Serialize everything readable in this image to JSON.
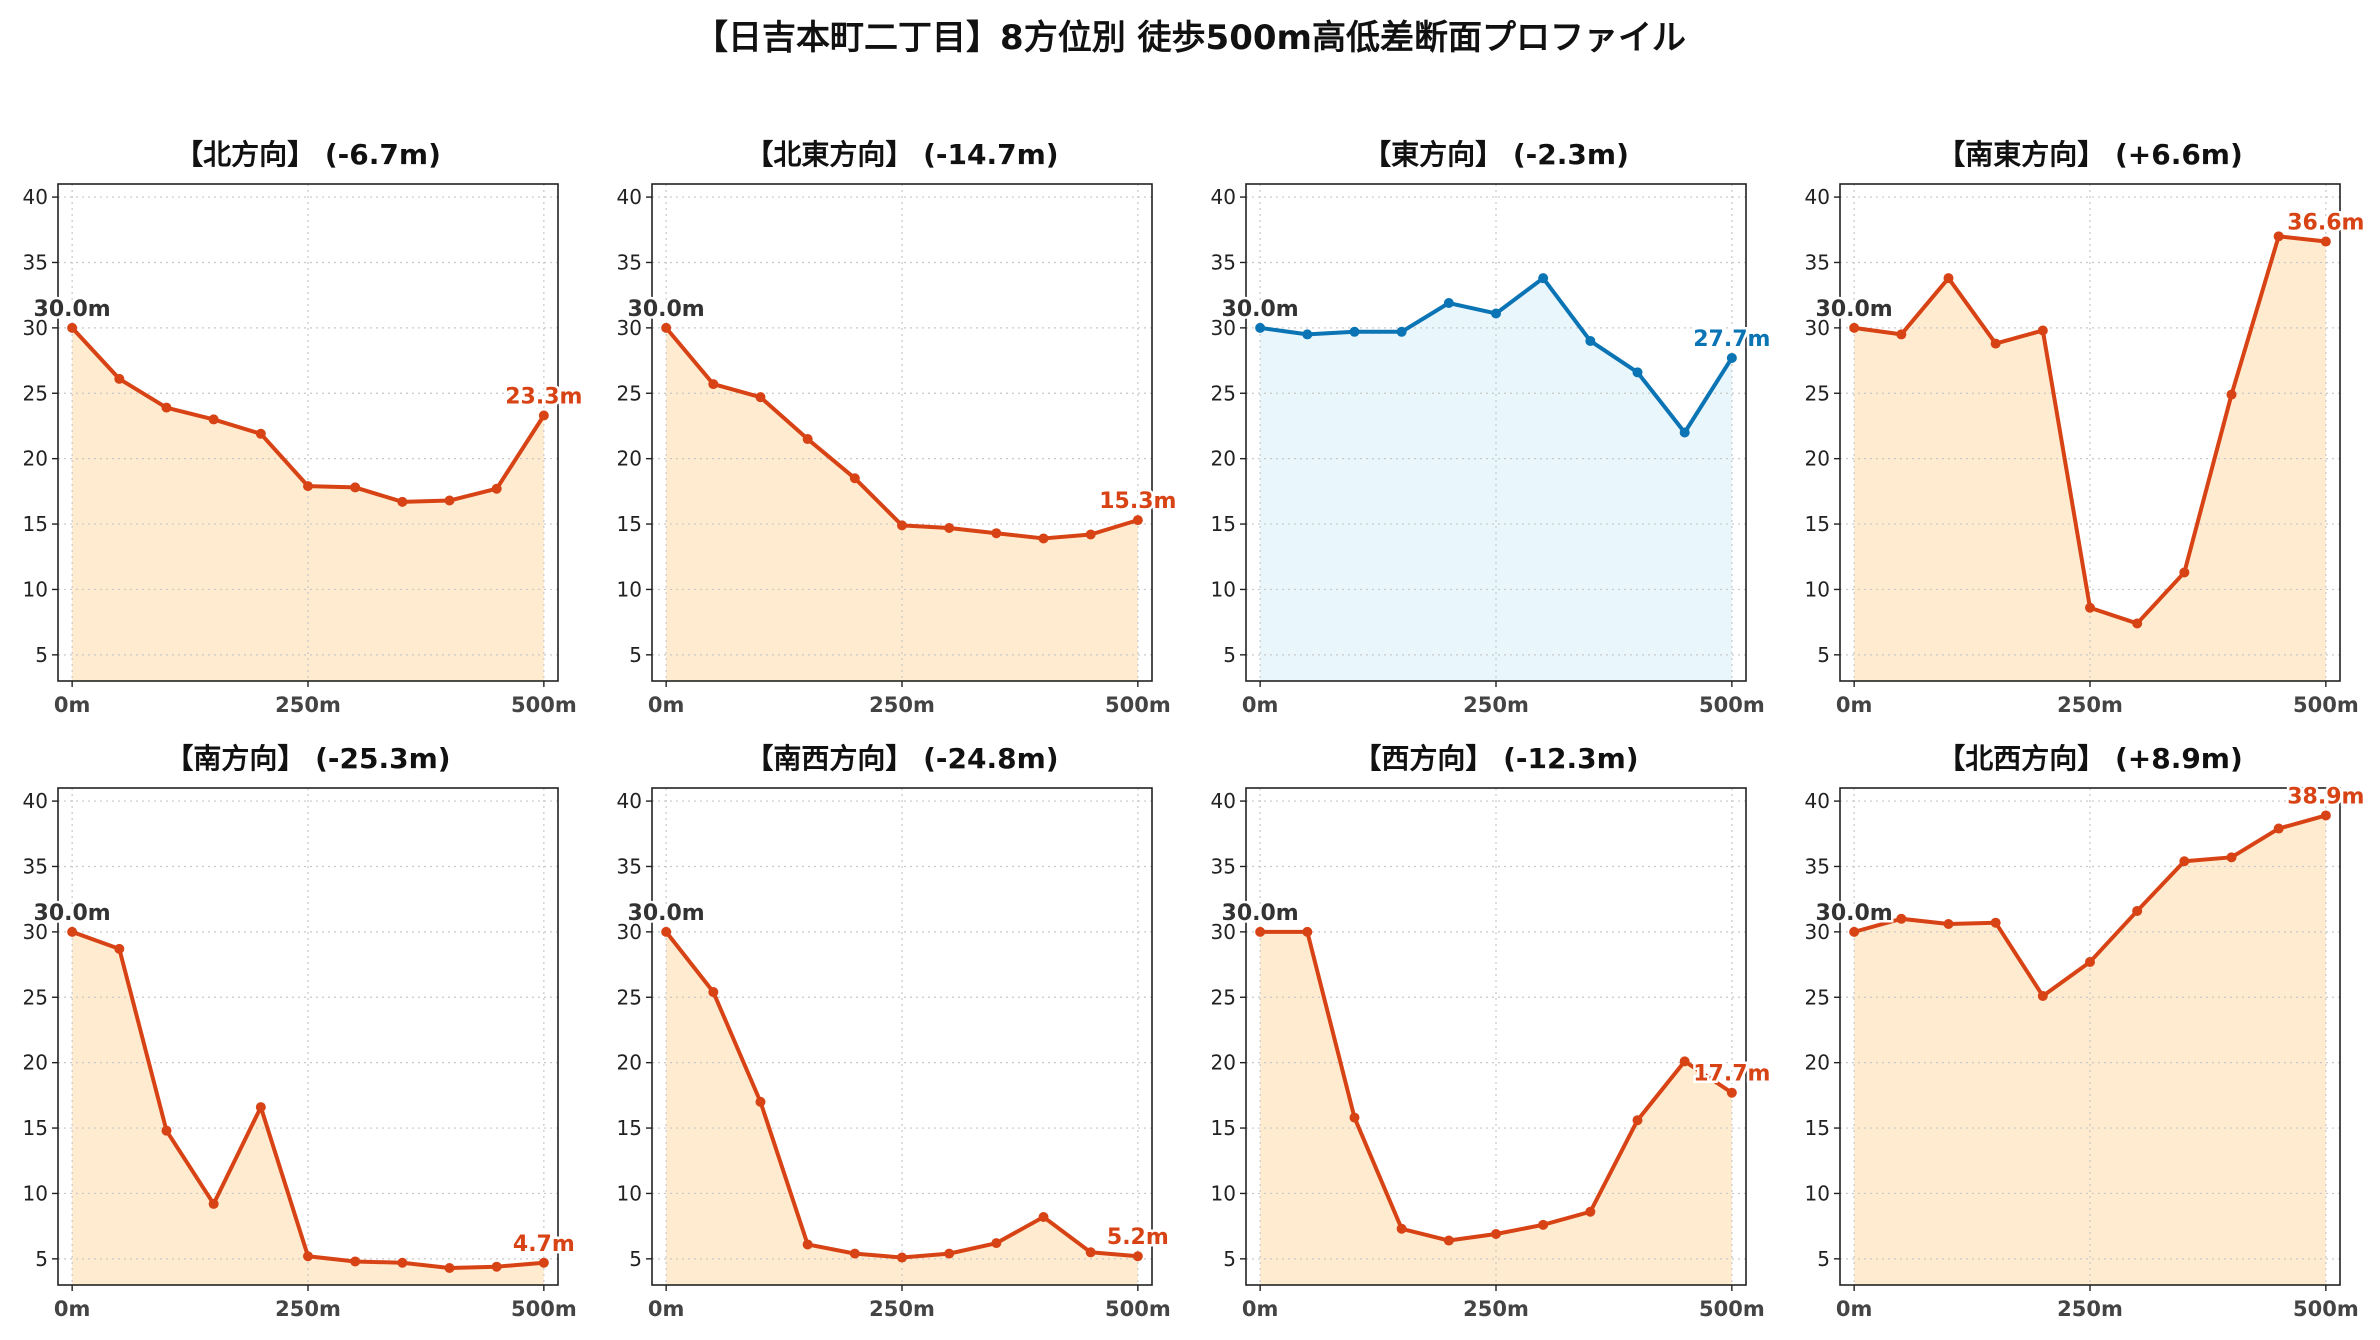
{
  "title": "【日吉本町二丁目】8方位別 徒歩500m高低差断面プロファイル",
  "colors": {
    "down_line": "#d84315",
    "down_fill": "#ffecd0",
    "flat_line": "#0a74b4",
    "flat_fill": "#e9f6fc",
    "start_label": "#333333",
    "grid": "#c8c8c8"
  },
  "chart_data": [
    {
      "type": "area",
      "title": "【北方向】 (-6.7m)",
      "x": [
        0,
        50,
        100,
        150,
        200,
        250,
        300,
        350,
        400,
        450,
        500
      ],
      "y": [
        30.0,
        26.1,
        23.9,
        23.0,
        21.9,
        17.9,
        17.8,
        16.7,
        16.8,
        17.7,
        23.3
      ],
      "xticks": [
        "0m",
        "250m",
        "500m"
      ],
      "yticks": [
        5,
        10,
        15,
        20,
        25,
        30,
        35,
        40
      ],
      "ylim": [
        3,
        41
      ],
      "start_label": "30.0m",
      "end_label": "23.3m",
      "style": "orange",
      "grid": true
    },
    {
      "type": "area",
      "title": "【北東方向】 (-14.7m)",
      "x": [
        0,
        50,
        100,
        150,
        200,
        250,
        300,
        350,
        400,
        450,
        500
      ],
      "y": [
        30.0,
        25.7,
        24.7,
        21.5,
        18.5,
        14.9,
        14.7,
        14.3,
        13.9,
        14.2,
        15.3
      ],
      "xticks": [
        "0m",
        "250m",
        "500m"
      ],
      "yticks": [
        5,
        10,
        15,
        20,
        25,
        30,
        35,
        40
      ],
      "ylim": [
        3,
        41
      ],
      "start_label": "30.0m",
      "end_label": "15.3m",
      "style": "orange",
      "grid": true
    },
    {
      "type": "area",
      "title": "【東方向】 (-2.3m)",
      "x": [
        0,
        50,
        100,
        150,
        200,
        250,
        300,
        350,
        400,
        450,
        500
      ],
      "y": [
        30.0,
        29.5,
        29.7,
        29.7,
        31.9,
        31.1,
        33.8,
        29.0,
        26.6,
        22.0,
        27.7
      ],
      "xticks": [
        "0m",
        "250m",
        "500m"
      ],
      "yticks": [
        5,
        10,
        15,
        20,
        25,
        30,
        35,
        40
      ],
      "ylim": [
        3,
        41
      ],
      "start_label": "30.0m",
      "end_label": "27.7m",
      "style": "blue",
      "grid": true
    },
    {
      "type": "area",
      "title": "【南東方向】 (+6.6m)",
      "x": [
        0,
        50,
        100,
        150,
        200,
        250,
        300,
        350,
        400,
        450,
        500
      ],
      "y": [
        30.0,
        29.5,
        33.8,
        28.8,
        29.8,
        8.6,
        7.4,
        11.3,
        24.9,
        37.0,
        36.6
      ],
      "xticks": [
        "0m",
        "250m",
        "500m"
      ],
      "yticks": [
        5,
        10,
        15,
        20,
        25,
        30,
        35,
        40
      ],
      "ylim": [
        3,
        41
      ],
      "start_label": "30.0m",
      "end_label": "36.6m",
      "style": "orange",
      "grid": true
    },
    {
      "type": "area",
      "title": "【南方向】 (-25.3m)",
      "x": [
        0,
        50,
        100,
        150,
        200,
        250,
        300,
        350,
        400,
        450,
        500
      ],
      "y": [
        30.0,
        28.7,
        14.8,
        9.2,
        16.6,
        5.2,
        4.8,
        4.7,
        4.3,
        4.4,
        4.7
      ],
      "xticks": [
        "0m",
        "250m",
        "500m"
      ],
      "yticks": [
        5,
        10,
        15,
        20,
        25,
        30,
        35,
        40
      ],
      "ylim": [
        3,
        41
      ],
      "start_label": "30.0m",
      "end_label": "4.7m",
      "style": "orange",
      "grid": true
    },
    {
      "type": "area",
      "title": "【南西方向】 (-24.8m)",
      "x": [
        0,
        50,
        100,
        150,
        200,
        250,
        300,
        350,
        400,
        450,
        500
      ],
      "y": [
        30.0,
        25.4,
        17.0,
        6.1,
        5.4,
        5.1,
        5.4,
        6.2,
        8.2,
        5.5,
        5.2
      ],
      "xticks": [
        "0m",
        "250m",
        "500m"
      ],
      "yticks": [
        5,
        10,
        15,
        20,
        25,
        30,
        35,
        40
      ],
      "ylim": [
        3,
        41
      ],
      "start_label": "30.0m",
      "end_label": "5.2m",
      "style": "orange",
      "grid": true
    },
    {
      "type": "area",
      "title": "【西方向】 (-12.3m)",
      "x": [
        0,
        50,
        100,
        150,
        200,
        250,
        300,
        350,
        400,
        450,
        500
      ],
      "y": [
        30.0,
        30.0,
        15.8,
        7.3,
        6.4,
        6.9,
        7.6,
        8.6,
        15.6,
        20.1,
        17.7
      ],
      "xticks": [
        "0m",
        "250m",
        "500m"
      ],
      "yticks": [
        5,
        10,
        15,
        20,
        25,
        30,
        35,
        40
      ],
      "ylim": [
        3,
        41
      ],
      "start_label": "30.0m",
      "end_label": "17.7m",
      "style": "orange",
      "grid": true
    },
    {
      "type": "area",
      "title": "【北西方向】 (+8.9m)",
      "x": [
        0,
        50,
        100,
        150,
        200,
        250,
        300,
        350,
        400,
        450,
        500
      ],
      "y": [
        30.0,
        31.0,
        30.6,
        30.7,
        25.1,
        27.7,
        31.6,
        35.4,
        35.7,
        37.9,
        38.9
      ],
      "xticks": [
        "0m",
        "250m",
        "500m"
      ],
      "yticks": [
        5,
        10,
        15,
        20,
        25,
        30,
        35,
        40
      ],
      "ylim": [
        3,
        41
      ],
      "start_label": "30.0m",
      "end_label": "38.9m",
      "style": "orange",
      "grid": true
    }
  ]
}
